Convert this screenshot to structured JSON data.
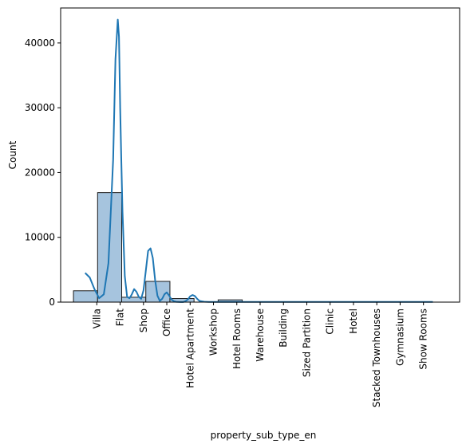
{
  "chart_data": {
    "type": "bar",
    "title": "",
    "xlabel": "property_sub_type_en",
    "ylabel": "Count",
    "ylim": [
      0,
      45400
    ],
    "yticks": [
      0,
      10000,
      20000,
      30000,
      40000
    ],
    "categories": [
      "Villa",
      "Flat",
      "Shop",
      "Office",
      "Hotel Apartment",
      "Workshop",
      "Hotel Rooms",
      "Warehouse",
      "Building",
      "Sized Partition",
      "Clinic",
      "Hotel",
      "Stacked Townhouses",
      "Gymnasium",
      "Show Rooms"
    ],
    "histogram": {
      "bin_count": 15,
      "bin_values": [
        1750,
        16900,
        750,
        3200,
        550,
        0,
        350,
        0,
        0,
        0,
        0,
        0,
        0,
        0,
        0
      ]
    },
    "kde": {
      "x": [
        -0.5,
        -0.3,
        -0.1,
        0.1,
        0.3,
        0.5,
        0.7,
        0.8,
        0.9,
        0.95,
        1.0,
        1.05,
        1.1,
        1.2,
        1.3,
        1.4,
        1.5,
        1.6,
        1.7,
        1.8,
        1.9,
        2.0,
        2.1,
        2.2,
        2.3,
        2.4,
        2.5,
        2.6,
        2.7,
        2.8,
        2.9,
        3.0,
        3.1,
        3.2,
        3.3,
        3.4,
        3.5,
        3.6,
        3.7,
        3.8,
        3.9,
        4.0,
        4.1,
        4.2,
        4.3,
        4.4,
        4.6,
        4.8,
        5.0,
        5.5,
        5.8,
        6.0,
        6.2,
        6.4,
        6.6,
        7.0,
        7.5,
        8.0,
        8.5,
        9.0,
        10.0,
        11.0,
        12.0,
        13.0,
        14.0,
        14.4
      ],
      "y": [
        4500,
        3800,
        2000,
        600,
        1200,
        6000,
        22000,
        37500,
        43600,
        41000,
        30000,
        22000,
        14000,
        4000,
        800,
        600,
        1200,
        2000,
        1600,
        800,
        500,
        1800,
        4800,
        7900,
        8300,
        6800,
        3400,
        1000,
        200,
        500,
        1200,
        1500,
        1000,
        400,
        150,
        50,
        20,
        10,
        10,
        150,
        400,
        900,
        1100,
        950,
        500,
        180,
        60,
        40,
        30,
        20,
        20,
        20,
        20,
        20,
        20,
        20,
        20,
        20,
        20,
        20,
        20,
        20,
        20,
        20,
        20,
        20
      ]
    },
    "colors": {
      "bar_fill": "#a6c4de",
      "bar_edge": "#1a1a1a",
      "kde_line": "#1f77b4"
    },
    "grid": false,
    "legend": "none"
  }
}
